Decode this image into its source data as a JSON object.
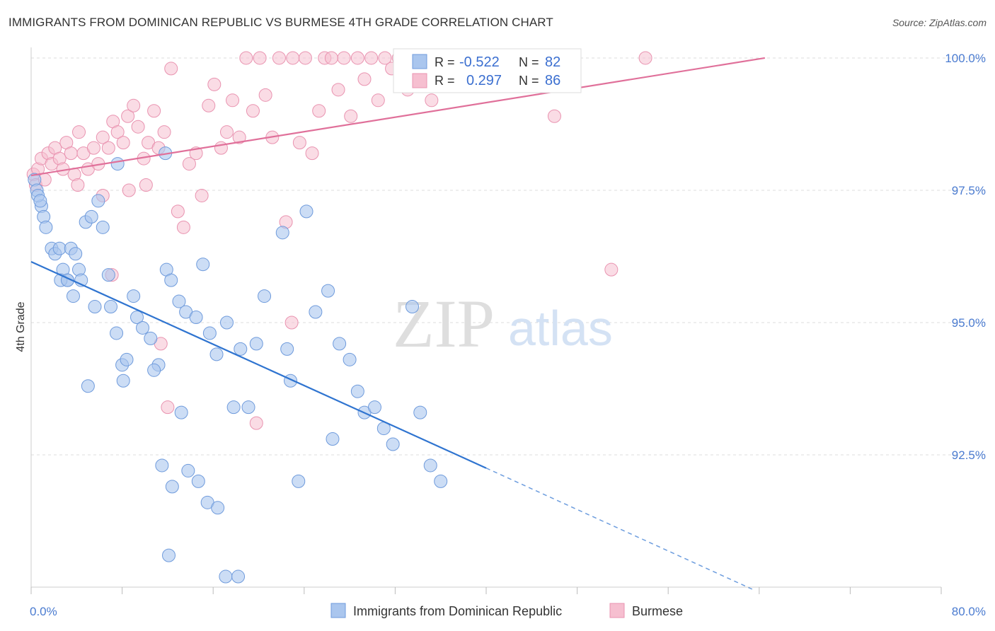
{
  "title": "IMMIGRANTS FROM DOMINICAN REPUBLIC VS BURMESE 4TH GRADE CORRELATION CHART",
  "source": "Source: ZipAtlas.com",
  "watermark": {
    "zip": "ZIP",
    "atlas": "atlas"
  },
  "colors": {
    "blue_fill": "#aac6ee",
    "blue_stroke": "#6f9bdc",
    "blue_line": "#2f74d0",
    "pink_fill": "#f6bfd0",
    "pink_stroke": "#e993b0",
    "pink_line": "#e0709a",
    "tick_text": "#4a7bd0",
    "grid": "#dddddd"
  },
  "legend": {
    "r_label": "R =",
    "n_label": "N =",
    "rows": [
      {
        "r": "-0.522",
        "n": "82"
      },
      {
        "r": "0.297",
        "n": "86"
      }
    ]
  },
  "chart_data": {
    "type": "scatter",
    "title": "IMMIGRANTS FROM DOMINICAN REPUBLIC VS BURMESE 4TH GRADE CORRELATION CHART",
    "xlabel": "",
    "ylabel": "4th Grade",
    "x_tick_labels": [
      "0.0%",
      "80.0%"
    ],
    "y_tick_labels": [
      "100.0%",
      "97.5%",
      "95.0%",
      "92.5%"
    ],
    "y_ticks": [
      100.0,
      97.5,
      95.0,
      92.5
    ],
    "xlim": [
      0,
      80
    ],
    "ylim": [
      90.0,
      100.2
    ],
    "grid": true,
    "legend_position": "top-center",
    "series": [
      {
        "name": "Immigrants from Dominican Republic",
        "color": "#aac6ee",
        "points": [
          [
            0.3,
            97.7
          ],
          [
            0.5,
            97.5
          ],
          [
            0.9,
            97.2
          ],
          [
            1.1,
            97.0
          ],
          [
            1.3,
            96.8
          ],
          [
            1.8,
            96.4
          ],
          [
            2.1,
            96.3
          ],
          [
            2.5,
            96.4
          ],
          [
            2.8,
            96.0
          ],
          [
            3.2,
            95.8
          ],
          [
            3.5,
            96.4
          ],
          [
            3.9,
            96.3
          ],
          [
            4.2,
            96.0
          ],
          [
            4.4,
            95.8
          ],
          [
            2.6,
            95.8
          ],
          [
            4.8,
            96.9
          ],
          [
            5.3,
            97.0
          ],
          [
            5.9,
            97.3
          ],
          [
            6.3,
            96.8
          ],
          [
            5.6,
            95.3
          ],
          [
            6.8,
            95.9
          ],
          [
            7.0,
            95.3
          ],
          [
            7.5,
            94.8
          ],
          [
            8.0,
            94.2
          ],
          [
            8.4,
            94.3
          ],
          [
            9.0,
            95.5
          ],
          [
            9.3,
            95.1
          ],
          [
            9.8,
            94.9
          ],
          [
            10.5,
            94.7
          ],
          [
            11.2,
            94.2
          ],
          [
            11.9,
            96.0
          ],
          [
            12.3,
            95.8
          ],
          [
            13.0,
            95.4
          ],
          [
            13.6,
            95.2
          ],
          [
            14.5,
            95.1
          ],
          [
            15.1,
            96.1
          ],
          [
            15.7,
            94.8
          ],
          [
            16.3,
            94.4
          ],
          [
            17.2,
            95.0
          ],
          [
            17.8,
            93.4
          ],
          [
            18.4,
            94.5
          ],
          [
            19.1,
            93.4
          ],
          [
            19.8,
            94.6
          ],
          [
            20.5,
            95.5
          ],
          [
            22.1,
            96.7
          ],
          [
            22.8,
            93.9
          ],
          [
            23.5,
            92.0
          ],
          [
            24.2,
            97.1
          ],
          [
            25.0,
            95.2
          ],
          [
            26.1,
            95.6
          ],
          [
            26.5,
            92.8
          ],
          [
            27.1,
            94.6
          ],
          [
            28.0,
            94.3
          ],
          [
            28.7,
            93.7
          ],
          [
            29.3,
            93.3
          ],
          [
            30.2,
            93.4
          ],
          [
            31.0,
            93.0
          ],
          [
            31.8,
            92.7
          ],
          [
            33.5,
            95.3
          ],
          [
            34.2,
            93.3
          ],
          [
            3.7,
            95.5
          ],
          [
            5.0,
            93.8
          ],
          [
            8.1,
            93.9
          ],
          [
            10.8,
            94.1
          ],
          [
            11.5,
            92.3
          ],
          [
            12.4,
            91.9
          ],
          [
            13.2,
            93.3
          ],
          [
            13.8,
            92.2
          ],
          [
            14.7,
            92.0
          ],
          [
            15.5,
            91.6
          ],
          [
            16.4,
            91.5
          ],
          [
            17.1,
            90.2
          ],
          [
            18.2,
            90.2
          ],
          [
            12.1,
            90.6
          ],
          [
            22.5,
            94.5
          ],
          [
            11.8,
            98.2
          ],
          [
            7.6,
            98.0
          ],
          [
            0.6,
            97.4
          ],
          [
            0.8,
            97.3
          ],
          [
            3.2,
            95.8
          ],
          [
            35.1,
            92.3
          ],
          [
            36.0,
            92.0
          ]
        ]
      },
      {
        "name": "Burmese",
        "color": "#f6bfd0",
        "points": [
          [
            0.2,
            97.8
          ],
          [
            0.4,
            97.6
          ],
          [
            0.6,
            97.9
          ],
          [
            0.9,
            98.1
          ],
          [
            1.2,
            97.7
          ],
          [
            1.5,
            98.2
          ],
          [
            1.8,
            98.0
          ],
          [
            2.1,
            98.3
          ],
          [
            2.5,
            98.1
          ],
          [
            2.8,
            97.9
          ],
          [
            3.1,
            98.4
          ],
          [
            3.5,
            98.2
          ],
          [
            3.8,
            97.8
          ],
          [
            4.2,
            98.6
          ],
          [
            4.6,
            98.2
          ],
          [
            5.0,
            97.9
          ],
          [
            5.5,
            98.3
          ],
          [
            5.9,
            98.0
          ],
          [
            6.3,
            98.5
          ],
          [
            6.8,
            98.3
          ],
          [
            7.2,
            98.8
          ],
          [
            7.6,
            98.6
          ],
          [
            8.1,
            98.4
          ],
          [
            8.5,
            98.9
          ],
          [
            9.0,
            99.1
          ],
          [
            9.4,
            98.7
          ],
          [
            9.9,
            98.1
          ],
          [
            10.3,
            98.4
          ],
          [
            10.8,
            99.0
          ],
          [
            11.2,
            98.3
          ],
          [
            11.7,
            98.6
          ],
          [
            12.3,
            99.8
          ],
          [
            12.9,
            97.1
          ],
          [
            13.4,
            96.8
          ],
          [
            13.9,
            98.0
          ],
          [
            14.5,
            98.2
          ],
          [
            15.0,
            97.4
          ],
          [
            15.6,
            99.1
          ],
          [
            16.1,
            99.5
          ],
          [
            16.7,
            98.3
          ],
          [
            17.2,
            98.6
          ],
          [
            17.7,
            99.2
          ],
          [
            18.3,
            98.5
          ],
          [
            18.9,
            100.0
          ],
          [
            19.5,
            99.0
          ],
          [
            20.1,
            100.0
          ],
          [
            20.6,
            99.3
          ],
          [
            21.2,
            98.5
          ],
          [
            21.8,
            100.0
          ],
          [
            22.4,
            96.9
          ],
          [
            23.0,
            100.0
          ],
          [
            23.6,
            98.4
          ],
          [
            24.1,
            100.0
          ],
          [
            24.7,
            98.2
          ],
          [
            25.3,
            99.0
          ],
          [
            25.8,
            100.0
          ],
          [
            26.4,
            100.0
          ],
          [
            27.0,
            99.4
          ],
          [
            27.5,
            100.0
          ],
          [
            28.1,
            98.9
          ],
          [
            28.7,
            100.0
          ],
          [
            29.3,
            99.6
          ],
          [
            29.9,
            100.0
          ],
          [
            30.5,
            99.2
          ],
          [
            31.1,
            100.0
          ],
          [
            31.7,
            99.8
          ],
          [
            32.3,
            100.0
          ],
          [
            33.1,
            99.4
          ],
          [
            34.0,
            100.0
          ],
          [
            35.2,
            99.2
          ],
          [
            36.2,
            100.0
          ],
          [
            37.5,
            99.5
          ],
          [
            38.5,
            99.8
          ],
          [
            42.0,
            100.0
          ],
          [
            46.0,
            98.9
          ],
          [
            51.0,
            96.0
          ],
          [
            54.0,
            100.0
          ],
          [
            4.1,
            97.6
          ],
          [
            6.3,
            97.4
          ],
          [
            8.6,
            97.5
          ],
          [
            10.1,
            97.6
          ],
          [
            11.4,
            94.6
          ],
          [
            12.0,
            93.4
          ],
          [
            19.8,
            93.1
          ],
          [
            22.9,
            95.0
          ],
          [
            7.1,
            95.9
          ]
        ]
      }
    ],
    "trendlines": [
      {
        "series": "Immigrants from Dominican Republic",
        "from": [
          0,
          96.15
        ],
        "to": [
          40,
          92.25
        ],
        "dashed_to": [
          63.5,
          89.95
        ]
      },
      {
        "series": "Burmese",
        "from": [
          0,
          97.78
        ],
        "to": [
          64.5,
          100.0
        ]
      }
    ]
  }
}
